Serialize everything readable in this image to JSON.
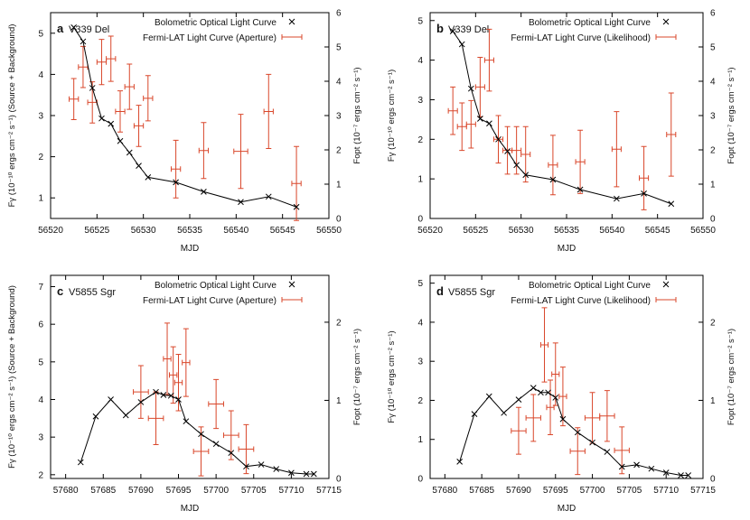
{
  "colors": {
    "fermi": "#d9472b",
    "optical": "#000000",
    "axis": "#000000"
  },
  "chart_data": [
    {
      "type": "scatter",
      "panel_letter": "a",
      "panel_name": "V339 Del",
      "xlabel": "MJD",
      "ylabel": "Fγ (10⁻¹⁰ ergs cm⁻² s⁻¹) (Source + Background)",
      "y2label": "Fopt (10⁻⁷ ergs cm⁻² s⁻¹)",
      "xlim": [
        56520,
        56550
      ],
      "ylim": [
        0.5,
        5.5
      ],
      "y2lim": [
        0,
        6
      ],
      "xticks": [
        56520,
        56525,
        56530,
        56535,
        56540,
        56545,
        56550
      ],
      "yticks": [
        1,
        2,
        3,
        4,
        5
      ],
      "y2ticks": [
        0,
        1,
        2,
        3,
        4,
        5,
        6
      ],
      "legend": [
        "Bolometric Optical Light Curve",
        "Fermi-LAT Light Curve (Aperture)"
      ],
      "optical": {
        "x": [
          56522.5,
          56523.5,
          56524.5,
          56525.5,
          56526.5,
          56527.5,
          56528.5,
          56529.5,
          56530.5,
          56533.5,
          56536.5,
          56540.5,
          56543.5,
          56546.5
        ],
        "y": [
          5.14,
          4.8,
          3.67,
          2.93,
          2.8,
          2.38,
          2.1,
          1.78,
          1.5,
          1.38,
          1.15,
          0.9,
          1.03,
          0.78
        ]
      },
      "fermi": [
        {
          "x": 56522.5,
          "xerr": 0.5,
          "y": 3.4,
          "yerr": 0.5
        },
        {
          "x": 56523.5,
          "xerr": 0.5,
          "y": 4.18,
          "yerr": 0.5
        },
        {
          "x": 56524.5,
          "xerr": 0.5,
          "y": 3.32,
          "yerr": 0.5
        },
        {
          "x": 56525.5,
          "xerr": 0.5,
          "y": 4.3,
          "yerr": 0.55
        },
        {
          "x": 56526.5,
          "xerr": 0.5,
          "y": 4.38,
          "yerr": 0.55
        },
        {
          "x": 56527.5,
          "xerr": 0.5,
          "y": 3.1,
          "yerr": 0.5
        },
        {
          "x": 56528.5,
          "xerr": 0.5,
          "y": 3.7,
          "yerr": 0.55
        },
        {
          "x": 56529.5,
          "xerr": 0.5,
          "y": 2.75,
          "yerr": 0.5
        },
        {
          "x": 56530.5,
          "xerr": 0.5,
          "y": 3.42,
          "yerr": 0.55
        },
        {
          "x": 56533.5,
          "xerr": 0.5,
          "y": 1.7,
          "yerr": 0.7
        },
        {
          "x": 56536.5,
          "xerr": 0.5,
          "y": 2.15,
          "yerr": 0.68
        },
        {
          "x": 56540.5,
          "xerr": 0.75,
          "y": 2.13,
          "yerr": 0.9
        },
        {
          "x": 56543.5,
          "xerr": 0.5,
          "y": 3.1,
          "yerr": 0.9
        },
        {
          "x": 56546.5,
          "xerr": 0.5,
          "y": 1.35,
          "yerr": 0.9
        }
      ]
    },
    {
      "type": "scatter",
      "panel_letter": "b",
      "panel_name": "V339 Del",
      "xlabel": "MJD",
      "ylabel": "Fγ (10⁻¹⁰ ergs cm⁻² s⁻¹)",
      "y2label": "Fopt (10⁻⁷ ergs cm⁻² s⁻¹)",
      "xlim": [
        56520,
        56550
      ],
      "ylim": [
        0,
        5.2
      ],
      "y2lim": [
        0,
        6
      ],
      "xticks": [
        56520,
        56525,
        56530,
        56535,
        56540,
        56545,
        56550
      ],
      "yticks": [
        0,
        1,
        2,
        3,
        4,
        5
      ],
      "y2ticks": [
        0,
        1,
        2,
        3,
        4,
        5,
        6
      ],
      "legend": [
        "Bolometric Optical Light Curve",
        "Fermi-LAT Light Curve (Likelihood)"
      ],
      "optical": {
        "x": [
          56522.5,
          56523.5,
          56524.5,
          56525.5,
          56526.5,
          56527.5,
          56528.5,
          56529.5,
          56530.5,
          56533.5,
          56536.5,
          56540.5,
          56543.5,
          56546.5
        ],
        "y": [
          4.73,
          4.4,
          3.28,
          2.52,
          2.4,
          2.0,
          1.7,
          1.35,
          1.1,
          0.98,
          0.73,
          0.5,
          0.63,
          0.37
        ]
      },
      "fermi": [
        {
          "x": 56522.5,
          "xerr": 0.5,
          "y": 2.72,
          "yerr": 0.6
        },
        {
          "x": 56523.5,
          "xerr": 0.5,
          "y": 2.32,
          "yerr": 0.6
        },
        {
          "x": 56524.5,
          "xerr": 0.5,
          "y": 2.38,
          "yerr": 0.6
        },
        {
          "x": 56525.5,
          "xerr": 0.5,
          "y": 3.32,
          "yerr": 0.75
        },
        {
          "x": 56526.5,
          "xerr": 0.5,
          "y": 4.0,
          "yerr": 0.78
        },
        {
          "x": 56527.5,
          "xerr": 0.5,
          "y": 2.0,
          "yerr": 0.6
        },
        {
          "x": 56528.5,
          "xerr": 0.5,
          "y": 1.72,
          "yerr": 0.6
        },
        {
          "x": 56529.5,
          "xerr": 0.5,
          "y": 1.72,
          "yerr": 0.6
        },
        {
          "x": 56530.5,
          "xerr": 0.5,
          "y": 1.62,
          "yerr": 0.7
        },
        {
          "x": 56533.5,
          "xerr": 0.5,
          "y": 1.35,
          "yerr": 0.75
        },
        {
          "x": 56536.5,
          "xerr": 0.5,
          "y": 1.43,
          "yerr": 0.8
        },
        {
          "x": 56540.5,
          "xerr": 0.5,
          "y": 1.75,
          "yerr": 0.95
        },
        {
          "x": 56543.5,
          "xerr": 0.5,
          "y": 1.02,
          "yerr": 0.8
        },
        {
          "x": 56546.5,
          "xerr": 0.5,
          "y": 2.12,
          "yerr": 1.05
        }
      ]
    },
    {
      "type": "scatter",
      "panel_letter": "c",
      "panel_name": "V5855 Sgr",
      "xlabel": "MJD",
      "ylabel": "Fγ (10⁻¹⁰ ergs cm⁻² s⁻¹) (Source + Background)",
      "y2label": "Fopt (10⁻⁷ ergs cm⁻² s⁻¹)",
      "xlim": [
        57678,
        57715
      ],
      "ylim": [
        1.9,
        7.3
      ],
      "y2lim": [
        0,
        2.6
      ],
      "xticks": [
        57680,
        57685,
        57690,
        57695,
        57700,
        57705,
        57710,
        57715
      ],
      "yticks": [
        2,
        3,
        4,
        5,
        6,
        7
      ],
      "y2ticks": [
        0,
        1,
        2
      ],
      "legend": [
        "Bolometric Optical Light Curve",
        "Fermi-LAT Light Curve (Aperture)"
      ],
      "optical": {
        "x": [
          57682,
          57684,
          57686,
          57688,
          57690,
          57692,
          57693,
          57694,
          57695,
          57696,
          57698,
          57700,
          57702,
          57704,
          57706,
          57708,
          57710,
          57712,
          57713
        ],
        "y": [
          2.33,
          3.55,
          4.0,
          3.58,
          3.93,
          4.2,
          4.12,
          4.1,
          4.0,
          3.42,
          3.08,
          2.82,
          2.58,
          2.22,
          2.27,
          2.15,
          2.05,
          2.02,
          2.02
        ]
      },
      "fermi": [
        {
          "x": 57690,
          "xerr": 1.0,
          "y": 4.2,
          "yerr": 0.7
        },
        {
          "x": 57692,
          "xerr": 1.0,
          "y": 3.5,
          "yerr": 0.7
        },
        {
          "x": 57693.5,
          "xerr": 0.5,
          "y": 5.08,
          "yerr": 0.95
        },
        {
          "x": 57694.3,
          "xerr": 0.5,
          "y": 4.65,
          "yerr": 0.75
        },
        {
          "x": 57695,
          "xerr": 0.5,
          "y": 4.45,
          "yerr": 0.75
        },
        {
          "x": 57696,
          "xerr": 0.5,
          "y": 4.98,
          "yerr": 0.9
        },
        {
          "x": 57698,
          "xerr": 1.0,
          "y": 2.62,
          "yerr": 0.65
        },
        {
          "x": 57700,
          "xerr": 1.0,
          "y": 3.88,
          "yerr": 0.65
        },
        {
          "x": 57702,
          "xerr": 1.0,
          "y": 3.05,
          "yerr": 0.65
        },
        {
          "x": 57704,
          "xerr": 1.0,
          "y": 2.68,
          "yerr": 0.65
        }
      ]
    },
    {
      "type": "scatter",
      "panel_letter": "d",
      "panel_name": "V5855 Sgr",
      "xlabel": "MJD",
      "ylabel": "Fγ (10⁻¹⁰ ergs cm⁻² s⁻¹)",
      "y2label": "Fopt (10⁻⁷ ergs cm⁻² s⁻¹)",
      "xlim": [
        57678,
        57715
      ],
      "ylim": [
        0,
        5.2
      ],
      "y2lim": [
        0,
        2.6
      ],
      "xticks": [
        57680,
        57685,
        57690,
        57695,
        57700,
        57705,
        57710,
        57715
      ],
      "yticks": [
        0,
        1,
        2,
        3,
        4,
        5
      ],
      "y2ticks": [
        0,
        1,
        2
      ],
      "legend": [
        "Bolometric Optical Light Curve",
        "Fermi-LAT Light Curve (Likelihood)"
      ],
      "optical": {
        "x": [
          57682,
          57684,
          57686,
          57688,
          57690,
          57692,
          57693,
          57694,
          57695,
          57696,
          57698,
          57700,
          57702,
          57704,
          57706,
          57708,
          57710,
          57712,
          57713
        ],
        "y": [
          0.43,
          1.65,
          2.1,
          1.68,
          2.02,
          2.32,
          2.2,
          2.2,
          2.07,
          1.52,
          1.18,
          0.92,
          0.68,
          0.3,
          0.35,
          0.25,
          0.15,
          0.08,
          0.08
        ]
      },
      "fermi": [
        {
          "x": 57690,
          "xerr": 1.0,
          "y": 1.22,
          "yerr": 0.6
        },
        {
          "x": 57692,
          "xerr": 1.0,
          "y": 1.55,
          "yerr": 0.6
        },
        {
          "x": 57693.5,
          "xerr": 0.5,
          "y": 3.42,
          "yerr": 0.95
        },
        {
          "x": 57694.3,
          "xerr": 0.5,
          "y": 1.82,
          "yerr": 0.7
        },
        {
          "x": 57695,
          "xerr": 0.5,
          "y": 2.67,
          "yerr": 0.8
        },
        {
          "x": 57696,
          "xerr": 0.5,
          "y": 2.1,
          "yerr": 0.75
        },
        {
          "x": 57698,
          "xerr": 1.0,
          "y": 0.7,
          "yerr": 0.6
        },
        {
          "x": 57700,
          "xerr": 1.0,
          "y": 1.55,
          "yerr": 0.65
        },
        {
          "x": 57702,
          "xerr": 1.0,
          "y": 1.6,
          "yerr": 0.65
        },
        {
          "x": 57704,
          "xerr": 1.0,
          "y": 0.72,
          "yerr": 0.6
        }
      ]
    }
  ]
}
